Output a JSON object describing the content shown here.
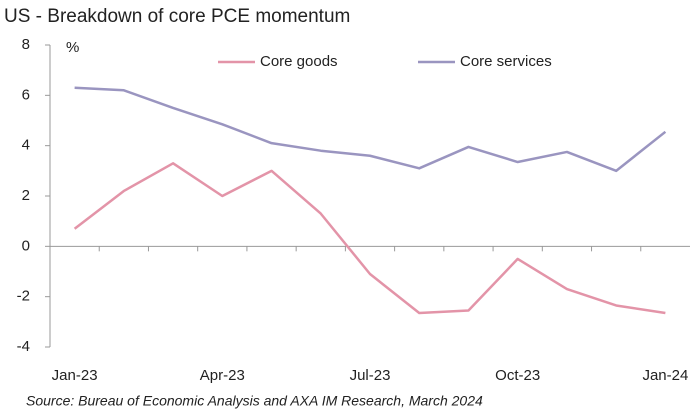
{
  "chart_data": {
    "type": "line",
    "title": "US - Breakdown of core PCE momentum",
    "y_label": "%",
    "source": "Source: Bureau of Economic Analysis and AXA IM Research, March 2024",
    "categories": [
      "Jan-23",
      null,
      null,
      "Apr-23",
      null,
      null,
      "Jul-23",
      null,
      null,
      "Oct-23",
      null,
      null,
      "Jan-24"
    ],
    "series": [
      {
        "name": "Core goods",
        "color": "#e394a8",
        "values": [
          0.7,
          2.2,
          3.3,
          2.0,
          3.0,
          1.3,
          -1.1,
          -2.65,
          -2.55,
          -0.5,
          -1.7,
          -2.35,
          -2.65
        ]
      },
      {
        "name": "Core services",
        "color": "#9a95c0",
        "values": [
          6.3,
          6.2,
          5.5,
          4.85,
          4.1,
          3.8,
          3.6,
          3.1,
          3.95,
          3.35,
          3.75,
          3.0,
          4.55
        ]
      }
    ],
    "ylim": [
      -4,
      8
    ],
    "yticks": [
      -4,
      -2,
      0,
      2,
      4,
      6,
      8
    ]
  }
}
